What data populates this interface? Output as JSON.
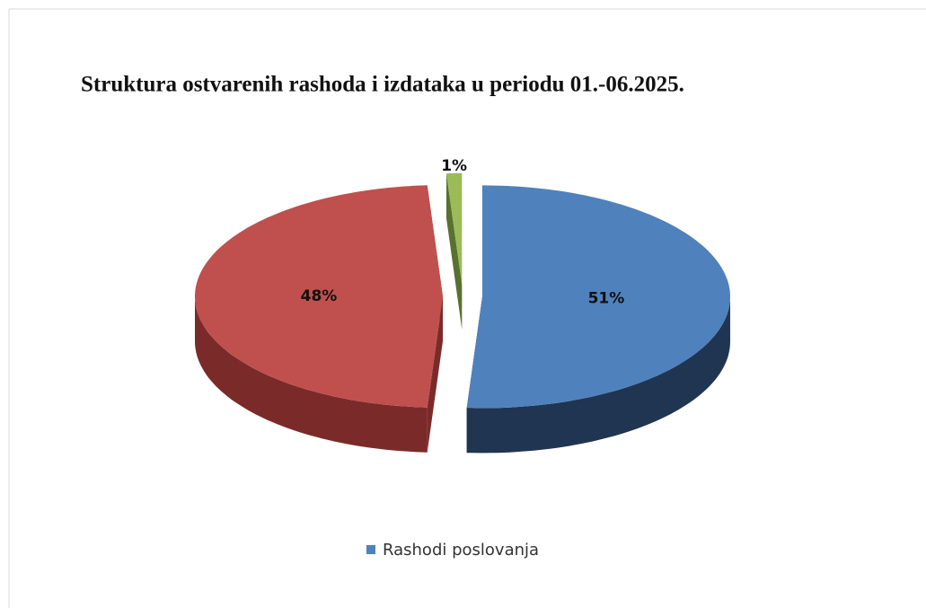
{
  "chart_data": {
    "type": "pie",
    "title": "Struktura ostvarenih rashoda i izdataka u periodu 01.-06.2025.",
    "categories": [
      "Rashodi poslovanja",
      null,
      null
    ],
    "values": [
      51,
      48,
      1
    ],
    "value_labels": [
      "51%",
      "48%",
      "1%"
    ],
    "colors": [
      "#4f81bd",
      "#c0504d",
      "#9bbb59"
    ],
    "side_colors": [
      "#1f3552",
      "#7a2b29",
      "#5a7030"
    ],
    "legend": "bottom"
  }
}
